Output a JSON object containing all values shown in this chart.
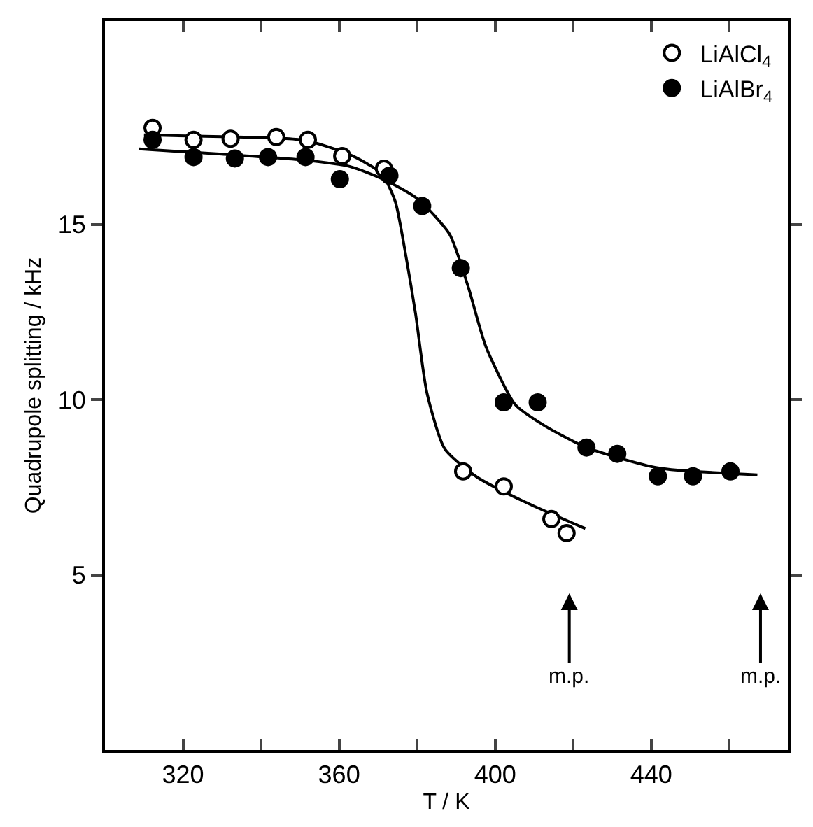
{
  "chart_data": {
    "type": "scatter",
    "xlabel": "T / K",
    "ylabel": "Quadrupole splitting / kHz",
    "xlim": [
      300,
      475
    ],
    "xticks": [
      320,
      {
        "value": 340,
        "label": null
      },
      360,
      {
        "value": 380,
        "label": null
      },
      400,
      {
        "value": 420,
        "label": null
      },
      440,
      {
        "value": 460,
        "label": null
      }
    ],
    "ylim": [
      0,
      20.8
    ],
    "yticks": [
      5,
      10,
      15
    ],
    "grid": false,
    "legend": "top right",
    "marker": "circle",
    "series": [
      {
        "name": "LiAlCl$_{4}$",
        "color": "#ffffff",
        "x": [
          312.2,
          322.7,
          332.2,
          343.9,
          352.0,
          360.8,
          371.5,
          391.8,
          402.2,
          414.4,
          418.3
        ],
        "values": [
          17.75,
          17.41,
          17.44,
          17.49,
          17.41,
          16.95,
          16.59,
          7.95,
          7.52,
          6.59,
          6.19
        ]
      },
      {
        "name": "LiAlBr$_{4}$",
        "color": "#000000",
        "x": [
          312.2,
          322.7,
          333.3,
          341.8,
          351.4,
          360.2,
          372.9,
          381.3,
          391.2,
          402.2,
          410.9,
          423.4,
          431.3,
          441.7,
          450.7,
          460.3
        ],
        "values": [
          17.41,
          16.92,
          16.88,
          16.92,
          16.92,
          16.29,
          16.39,
          15.52,
          13.75,
          9.92,
          9.92,
          8.63,
          8.45,
          7.81,
          7.81,
          7.95
        ]
      },
      {
        "type": "line",
        "marker": "none",
        "color": "#000000",
        "line_style": "solid",
        "x": [
          310,
          330,
          351,
          362.7,
          370.9,
          374.4,
          377.2,
          379.6,
          382.5,
          387.1,
          395.3,
          406.8,
          423.1
        ],
        "values": [
          17.55,
          17.5,
          17.4,
          16.99,
          16.45,
          15.65,
          14.05,
          12.45,
          10.2,
          8.59,
          7.79,
          7.12,
          6.32
        ]
      },
      {
        "type": "line",
        "marker": "none",
        "color": "#000000",
        "line_style": "solid",
        "x": [
          308.7,
          330,
          351.1,
          362.7,
          372,
          380.2,
          388.3,
          393,
          397.6,
          405.2,
          412.7,
          423.4,
          441.7,
          467.2
        ],
        "values": [
          17.15,
          17.0,
          16.83,
          16.65,
          16.25,
          15.72,
          14.72,
          13.25,
          11.52,
          9.85,
          9.25,
          8.63,
          8.05,
          7.85
        ]
      }
    ],
    "ref_lines": [
      {
        "axis": "x",
        "value": 419,
        "label": "m.p."
      },
      {
        "axis": "x",
        "value": 468,
        "label": "m.p."
      }
    ]
  }
}
